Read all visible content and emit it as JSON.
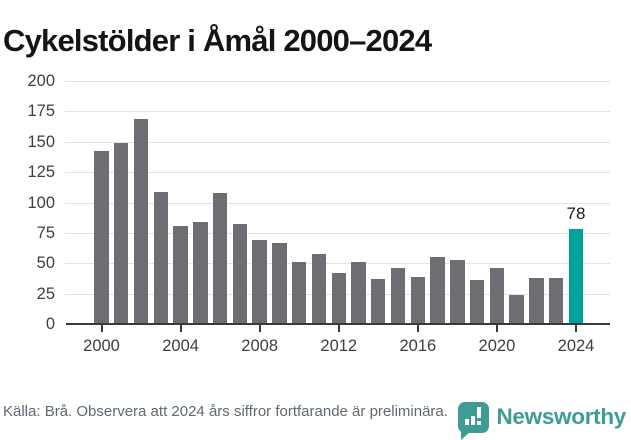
{
  "title": "Cykelstölder i Åmål 2000–2024",
  "chart_data": {
    "type": "bar",
    "title": "Cykelstölder i Åmål 2000–2024",
    "x": [
      2000,
      2001,
      2002,
      2003,
      2004,
      2005,
      2006,
      2007,
      2008,
      2009,
      2010,
      2011,
      2012,
      2013,
      2014,
      2015,
      2016,
      2017,
      2018,
      2019,
      2020,
      2021,
      2022,
      2023,
      2024
    ],
    "values": [
      142,
      149,
      169,
      109,
      81,
      84,
      108,
      82,
      69,
      67,
      51,
      58,
      42,
      51,
      37,
      46,
      39,
      55,
      53,
      36,
      46,
      24,
      38,
      38,
      78
    ],
    "xlabel": "",
    "ylabel": "",
    "ylim": [
      0,
      200
    ],
    "y_ticks": [
      0,
      25,
      50,
      75,
      100,
      125,
      150,
      175,
      200
    ],
    "x_tick_years": [
      2000,
      2004,
      2008,
      2012,
      2016,
      2020,
      2024
    ],
    "grid": true,
    "legend_position": "none",
    "bar_color": "#6d6e73",
    "highlight_index": 24,
    "highlight_color": "#00a39b",
    "highlight_value_label": "78"
  },
  "footer": {
    "source_note": "Källa: Brå. Observera att 2024 års siffror fortfarande är preliminära."
  },
  "branding": {
    "logo_text": "Newsworthy",
    "logo_color": "#3f9c95"
  }
}
